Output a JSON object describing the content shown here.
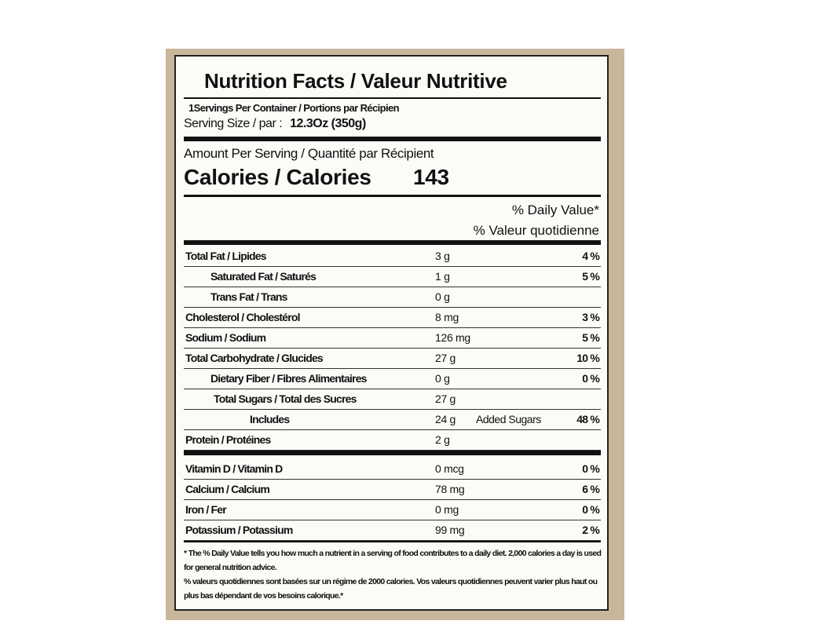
{
  "title": "Nutrition Facts / Valeur Nutritive",
  "servings_per_container": "1Servings Per Container / Portions par Récipien",
  "serving_size_label": "Serving Size / par :",
  "serving_size_value": "12.3Oz (350g)",
  "amount_per_serving": "Amount Per Serving / Quantité par Récipient",
  "calories_label": "Calories / Calories",
  "calories_value": "143",
  "dv_header_en": "% Daily Value*",
  "dv_header_fr": "% Valeur quotidienne",
  "nutrients": [
    {
      "name": "Total Fat / Lipides",
      "amount": "3 g",
      "dv": "4 %"
    },
    {
      "name": "Saturated Fat / Saturés",
      "amount": "1 g",
      "dv": "5 %"
    },
    {
      "name": "Trans Fat / Trans",
      "amount": "0 g",
      "dv": ""
    },
    {
      "name": "Cholesterol / Cholestérol",
      "amount": "8 mg",
      "dv": "3 %"
    },
    {
      "name": "Sodium / Sodium",
      "amount": "126 mg",
      "dv": "5 %"
    },
    {
      "name": "Total Carbohydrate / Glucides",
      "amount": "27 g",
      "dv": "10 %"
    },
    {
      "name": "Dietary Fiber / Fibres Alimentaires",
      "amount": "0 g",
      "dv": "0 %"
    },
    {
      "name": "Total Sugars / Total des Sucres",
      "amount": "27 g",
      "dv": ""
    },
    {
      "name": "Includes",
      "amount": "24 g",
      "extra": "Added Sugars",
      "dv": "48 %"
    },
    {
      "name": "Protein / Protéines",
      "amount": "2 g",
      "dv": ""
    }
  ],
  "vitamins": [
    {
      "name": "Vitamin D / Vitamin D",
      "amount": "0 mcg",
      "dv": "0 %"
    },
    {
      "name": "Calcium / Calcium",
      "amount": "78 mg",
      "dv": "6 %"
    },
    {
      "name": "Iron / Fer",
      "amount": "0 mg",
      "dv": "0 %"
    },
    {
      "name": "Potassium / Potassium",
      "amount": "99 mg",
      "dv": "2 %"
    }
  ],
  "footnote_en": "* The % Daily Value tells you how much a nutrient in a serving of food contributes to a daily diet. 2,000 calories a day is used for general nutrition advice.",
  "footnote_fr": "% valeurs quotidiennes sont basées sur un régime de 2000 calories. Vos valeurs quotidiennes peuvent varier plus haut ou plus bas dépendant de vos besoins calorique.*"
}
